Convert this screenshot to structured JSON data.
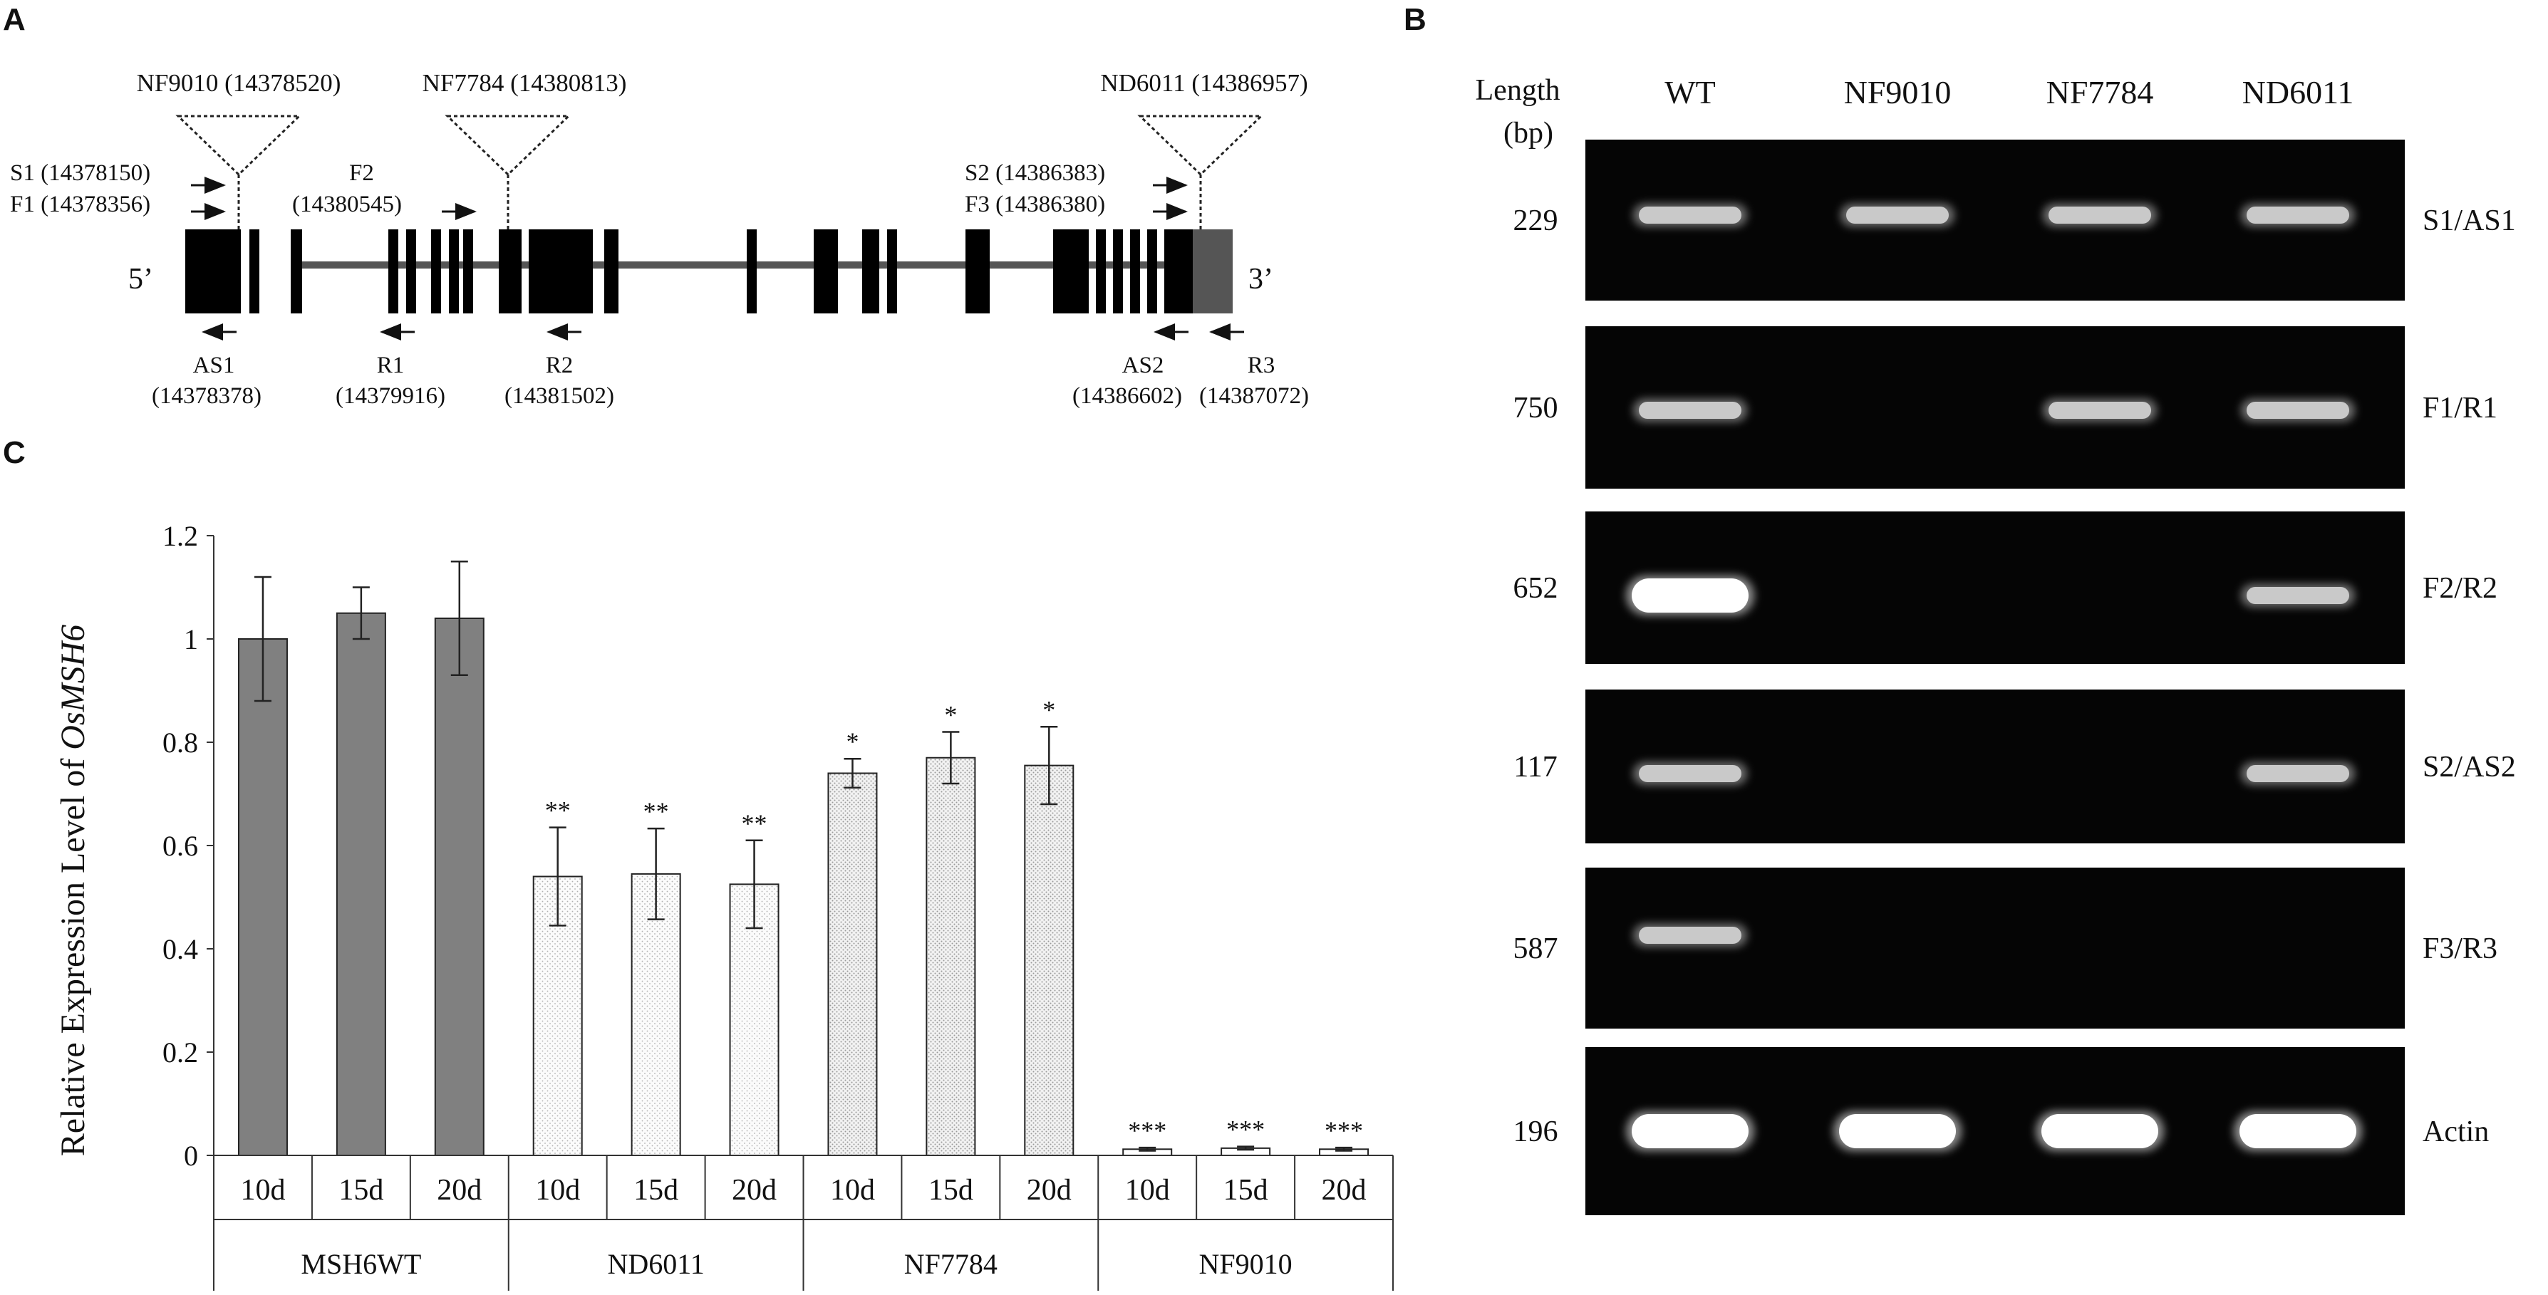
{
  "panel_labels": {
    "a": "A",
    "b": "B",
    "c": "C"
  },
  "gene_diagram": {
    "five_prime": "5’",
    "three_prime": "3’",
    "insertions": [
      {
        "name": "NF9010 (14378520)"
      },
      {
        "name": "NF7784 (14380813)"
      },
      {
        "name": "ND6011 (14386957)"
      }
    ],
    "forward_primers": [
      {
        "label": "S1 (14378150)"
      },
      {
        "label": "F1 (14378356)"
      },
      {
        "label": "F2",
        "label2": "(14380545)"
      },
      {
        "label": "S2 (14386383)"
      },
      {
        "label": "F3 (14386380)"
      }
    ],
    "reverse_primers": [
      {
        "label": "AS1",
        "label2": "(14378378)"
      },
      {
        "label": "R1",
        "label2": "(14379916)"
      },
      {
        "label": "R2",
        "label2": "(14381502)"
      },
      {
        "label": "AS2",
        "label2": "(14386602)"
      },
      {
        "label": "R3",
        "label2": "(14387072)"
      }
    ]
  },
  "gel": {
    "length_header_1": "Length",
    "length_header_2": "(bp)",
    "lanes": [
      "WT",
      "NF9010",
      "NF7784",
      "ND6011"
    ],
    "rows": [
      {
        "length": "229",
        "primer": "S1/AS1",
        "bands": [
          1,
          1,
          1,
          1
        ]
      },
      {
        "length": "750",
        "primer": "F1/R1",
        "bands": [
          1,
          0,
          1,
          1
        ]
      },
      {
        "length": "652",
        "primer": "F2/R2",
        "bands": [
          1,
          0,
          0,
          1
        ]
      },
      {
        "length": "117",
        "primer": "S2/AS2",
        "bands": [
          1,
          0,
          0,
          1
        ]
      },
      {
        "length": "587",
        "primer": "F3/R3",
        "bands": [
          1,
          0,
          0,
          0
        ]
      },
      {
        "length": "196",
        "primer": "Actin",
        "bands": [
          1,
          1,
          1,
          1
        ]
      }
    ]
  },
  "chart_data": {
    "type": "bar",
    "ylabel_prefix": "Relative Expression Level of ",
    "ylabel_italic": "OsMSH6",
    "ylim": [
      0,
      1.2
    ],
    "yticks": [
      "0",
      "0.2",
      "0.4",
      "0.6",
      "0.8",
      "1",
      "1.2"
    ],
    "groups": [
      {
        "name": "MSH6WT",
        "fill": "#808080",
        "categories": [
          "10d",
          "15d",
          "20d"
        ],
        "values": [
          1.0,
          1.05,
          1.04
        ],
        "errors": [
          0.12,
          0.05,
          0.11
        ],
        "sig": [
          "",
          "",
          ""
        ]
      },
      {
        "name": "ND6011",
        "fill": "#fdfdfd",
        "categories": [
          "10d",
          "15d",
          "20d"
        ],
        "values": [
          0.54,
          0.545,
          0.525
        ],
        "errors": [
          0.095,
          0.088,
          0.085
        ],
        "sig": [
          "**",
          "**",
          "**"
        ]
      },
      {
        "name": "NF7784",
        "fill": "#ececec",
        "categories": [
          "10d",
          "15d",
          "20d"
        ],
        "values": [
          0.74,
          0.77,
          0.755
        ],
        "errors": [
          0.028,
          0.05,
          0.075
        ],
        "sig": [
          "*",
          "*",
          "*"
        ]
      },
      {
        "name": "NF9010",
        "fill": "#ffffff",
        "categories": [
          "10d",
          "15d",
          "20d"
        ],
        "values": [
          0.012,
          0.014,
          0.012
        ],
        "errors": [
          0.003,
          0.003,
          0.003
        ],
        "sig": [
          "***",
          "***",
          "***"
        ]
      }
    ]
  }
}
